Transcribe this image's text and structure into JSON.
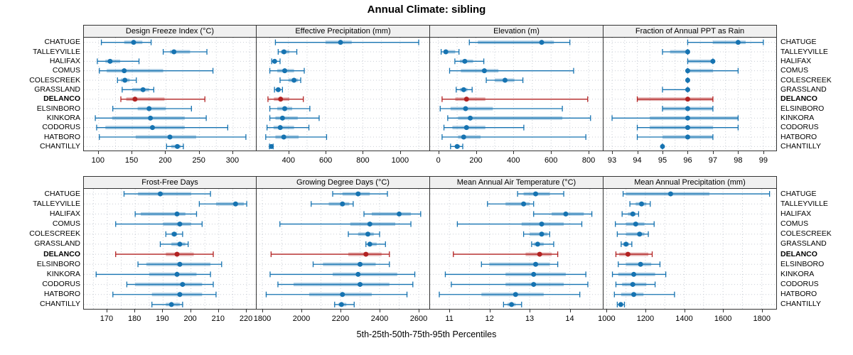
{
  "title": "Annual Climate: sibling",
  "caption": "5th-25th-50th-75th-95th Percentiles",
  "sites": [
    "CHATUGE",
    "TALLEYVILLE",
    "HALIFAX",
    "COMUS",
    "COLESCREEK",
    "GRASSLAND",
    "DELANCO",
    "ELSINBORO",
    "KINKORA",
    "CODORUS",
    "HATBORO",
    "CHANTILLY"
  ],
  "highlight_site": "DELANCO",
  "colors": {
    "series_blue": "#1673b1",
    "series_red": "#b22222",
    "grid": "#c9ced6",
    "strip_bg": "#f0f0f0",
    "panel_border": "#333333"
  },
  "chart_data": [
    {
      "type": "dotplot-percentiles",
      "title": "Design Freeze Index (°C)",
      "row": "top",
      "ticks": [
        100,
        150,
        200,
        250,
        300
      ],
      "domain": [
        78,
        336
      ],
      "grid_step": 25,
      "percentile_labels": [
        "5th",
        "25th",
        "50th",
        "75th",
        "95th"
      ],
      "values": [
        [
          104,
          138,
          152,
          165,
          178
        ],
        [
          196,
          206,
          212,
          236,
          261
        ],
        [
          98,
          110,
          117,
          132,
          160
        ],
        [
          101,
          112,
          138,
          196,
          270
        ],
        [
          128,
          133,
          139,
          146,
          156
        ],
        [
          135,
          150,
          166,
          175,
          182
        ],
        [
          133,
          141,
          154,
          198,
          258
        ],
        [
          121,
          158,
          175,
          200,
          238
        ],
        [
          95,
          120,
          177,
          228,
          260
        ],
        [
          97,
          110,
          180,
          228,
          292
        ],
        [
          101,
          155,
          206,
          245,
          319
        ],
        [
          201,
          208,
          217,
          222,
          226
        ]
      ]
    },
    {
      "type": "dotplot-percentiles",
      "title": "Effective Precipitation (mm)",
      "row": "top",
      "ticks": [
        400,
        600,
        800,
        1000
      ],
      "domain": [
        229,
        1161
      ],
      "grid_step": 100,
      "values": [
        [
          330,
          600,
          680,
          740,
          1100
        ],
        [
          345,
          360,
          376,
          405,
          445
        ],
        [
          310,
          318,
          326,
          336,
          355
        ],
        [
          300,
          340,
          380,
          430,
          485
        ],
        [
          355,
          400,
          430,
          452,
          466
        ],
        [
          325,
          335,
          345,
          356,
          368
        ],
        [
          290,
          322,
          358,
          405,
          480
        ],
        [
          300,
          340,
          380,
          420,
          515
        ],
        [
          300,
          330,
          368,
          450,
          565
        ],
        [
          285,
          320,
          356,
          430,
          510
        ],
        [
          278,
          330,
          375,
          455,
          605
        ],
        [
          298,
          303,
          308,
          313,
          318
        ]
      ]
    },
    {
      "type": "dotplot-percentiles",
      "title": "Elevation (m)",
      "row": "top",
      "ticks": [
        0,
        200,
        400,
        600,
        800
      ],
      "domain": [
        -44,
        879
      ],
      "grid_step": 100,
      "values": [
        [
          165,
          210,
          550,
          615,
          700
        ],
        [
          15,
          28,
          40,
          90,
          110
        ],
        [
          88,
          115,
          141,
          185,
          242
        ],
        [
          60,
          120,
          245,
          320,
          720
        ],
        [
          255,
          300,
          355,
          405,
          450
        ],
        [
          95,
          115,
          135,
          155,
          180
        ],
        [
          20,
          90,
          150,
          250,
          795
        ],
        [
          10,
          65,
          145,
          290,
          660
        ],
        [
          50,
          105,
          170,
          660,
          810
        ],
        [
          30,
          75,
          150,
          250,
          455
        ],
        [
          20,
          105,
          135,
          225,
          785
        ],
        [
          65,
          90,
          100,
          115,
          130
        ]
      ]
    },
    {
      "type": "dotplot-percentiles",
      "title": "Fraction of Annual PPT as Rain",
      "row": "top",
      "ticks": [
        93,
        94,
        95,
        96,
        97,
        98,
        99
      ],
      "domain": [
        92.66,
        99.54
      ],
      "grid_step": 0.5,
      "values": [
        [
          96,
          97,
          98,
          98.3,
          99
        ],
        [
          95,
          95.3,
          96,
          96,
          96
        ],
        [
          96,
          96,
          97,
          97,
          97
        ],
        [
          96,
          96,
          96,
          97,
          98
        ],
        [
          96,
          96,
          96,
          96,
          96
        ],
        [
          95,
          96,
          96,
          96,
          96
        ],
        [
          94,
          94,
          96,
          97,
          97
        ],
        [
          95,
          95,
          96,
          97,
          97
        ],
        [
          93,
          94.5,
          96,
          98,
          98
        ],
        [
          94,
          94.5,
          96,
          97,
          98
        ],
        [
          94,
          95,
          96,
          97,
          97
        ],
        [
          95,
          95,
          95,
          95,
          95
        ]
      ]
    },
    {
      "type": "dotplot-percentiles",
      "title": "Frost-Free Days",
      "row": "bottom",
      "ticks": [
        170,
        180,
        190,
        200,
        210,
        220
      ],
      "domain": [
        161.6,
        223.8
      ],
      "grid_step": 5,
      "values": [
        [
          176,
          181,
          189,
          200,
          207
        ],
        [
          203,
          209,
          216,
          219,
          220
        ],
        [
          180,
          182,
          195,
          198,
          202
        ],
        [
          173,
          190,
          196,
          200,
          204
        ],
        [
          191,
          193,
          194,
          195,
          197
        ],
        [
          189,
          193,
          196,
          198,
          199
        ],
        [
          173,
          191,
          195,
          201,
          208
        ],
        [
          181,
          184,
          196,
          207,
          211
        ],
        [
          166,
          185,
          195,
          202,
          207
        ],
        [
          177,
          180,
          197,
          204,
          208
        ],
        [
          172,
          186,
          196,
          204,
          209
        ],
        [
          186,
          191,
          193,
          196,
          197
        ]
      ]
    },
    {
      "type": "dotplot-percentiles",
      "title": "Growing Degree Days (°C)",
      "row": "bottom",
      "ticks": [
        1800,
        2000,
        2200,
        2400,
        2600
      ],
      "domain": [
        1771,
        2658
      ],
      "grid_step": 100,
      "values": [
        [
          2160,
          2210,
          2290,
          2350,
          2440
        ],
        [
          2050,
          2140,
          2210,
          2245,
          2265
        ],
        [
          2320,
          2360,
          2500,
          2560,
          2610
        ],
        [
          1890,
          2250,
          2350,
          2480,
          2560
        ],
        [
          2240,
          2290,
          2340,
          2370,
          2400
        ],
        [
          2330,
          2340,
          2350,
          2385,
          2430
        ],
        [
          1845,
          2240,
          2330,
          2410,
          2450
        ],
        [
          2060,
          2110,
          2300,
          2380,
          2450
        ],
        [
          1840,
          2160,
          2290,
          2490,
          2580
        ],
        [
          1880,
          1960,
          2300,
          2450,
          2570
        ],
        [
          1820,
          2040,
          2210,
          2360,
          2540
        ],
        [
          2170,
          2190,
          2205,
          2230,
          2270
        ]
      ]
    },
    {
      "type": "dotplot-percentiles",
      "title": "Mean Annual Air Temperature (°C)",
      "row": "bottom",
      "ticks": [
        11,
        12,
        13,
        14
      ],
      "domain": [
        10.52,
        14.84
      ],
      "grid_step": 0.5,
      "values": [
        [
          12.7,
          12.85,
          13.15,
          13.5,
          13.85
        ],
        [
          11.95,
          12.4,
          12.85,
          13.0,
          13.1
        ],
        [
          13.1,
          13.55,
          13.9,
          14.35,
          14.55
        ],
        [
          11.2,
          12.8,
          13.3,
          13.85,
          14.3
        ],
        [
          12.85,
          13.0,
          13.3,
          13.45,
          13.5
        ],
        [
          13.05,
          13.1,
          13.2,
          13.35,
          13.6
        ],
        [
          11.1,
          12.9,
          13.25,
          13.55,
          13.7
        ],
        [
          11.8,
          12.0,
          13.15,
          13.5,
          13.7
        ],
        [
          10.9,
          12.4,
          13.1,
          13.9,
          14.4
        ],
        [
          11.05,
          12.4,
          13.1,
          13.85,
          14.45
        ],
        [
          10.75,
          11.8,
          12.65,
          13.35,
          14.25
        ],
        [
          12.35,
          12.45,
          12.55,
          12.65,
          12.8
        ]
      ]
    },
    {
      "type": "dotplot-percentiles",
      "title": "Mean Annual Precipitation (mm)",
      "row": "bottom",
      "ticks": [
        1000,
        1200,
        1400,
        1600,
        1800
      ],
      "domain": [
        984,
        1878
      ],
      "grid_step": 100,
      "values": [
        [
          1085,
          1100,
          1330,
          1530,
          1840
        ],
        [
          1120,
          1150,
          1180,
          1205,
          1225
        ],
        [
          1080,
          1110,
          1135,
          1150,
          1165
        ],
        [
          1045,
          1100,
          1150,
          1195,
          1245
        ],
        [
          1055,
          1100,
          1170,
          1195,
          1215
        ],
        [
          1075,
          1085,
          1100,
          1115,
          1130
        ],
        [
          1048,
          1065,
          1110,
          1215,
          1235
        ],
        [
          1060,
          1100,
          1175,
          1230,
          1275
        ],
        [
          1030,
          1060,
          1140,
          1250,
          1305
        ],
        [
          1048,
          1080,
          1135,
          1205,
          1250
        ],
        [
          1040,
          1075,
          1140,
          1190,
          1350
        ],
        [
          1055,
          1065,
          1073,
          1082,
          1092
        ]
      ]
    }
  ]
}
